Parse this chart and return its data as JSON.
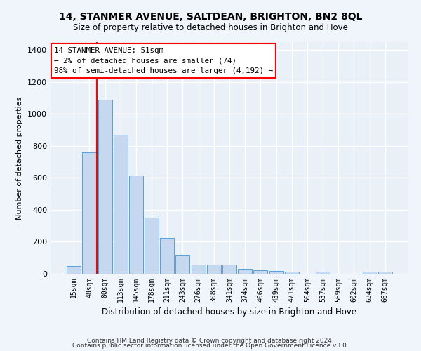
{
  "title": "14, STANMER AVENUE, SALTDEAN, BRIGHTON, BN2 8QL",
  "subtitle": "Size of property relative to detached houses in Brighton and Hove",
  "xlabel": "Distribution of detached houses by size in Brighton and Hove",
  "ylabel": "Number of detached properties",
  "categories": [
    "15sqm",
    "48sqm",
    "80sqm",
    "113sqm",
    "145sqm",
    "178sqm",
    "211sqm",
    "243sqm",
    "276sqm",
    "308sqm",
    "341sqm",
    "374sqm",
    "406sqm",
    "439sqm",
    "471sqm",
    "504sqm",
    "537sqm",
    "569sqm",
    "602sqm",
    "634sqm",
    "667sqm"
  ],
  "values": [
    50,
    760,
    1090,
    870,
    615,
    350,
    225,
    120,
    55,
    58,
    58,
    30,
    20,
    18,
    15,
    0,
    13,
    0,
    0,
    13,
    15
  ],
  "bar_color": "#c5d8f0",
  "bar_edgecolor": "#5a9fd4",
  "vline_x": 1.5,
  "annotation_text": "14 STANMER AVENUE: 51sqm\n← 2% of detached houses are smaller (74)\n98% of semi-detached houses are larger (4,192) →",
  "ylim": [
    0,
    1450
  ],
  "yticks": [
    0,
    200,
    400,
    600,
    800,
    1000,
    1200,
    1400
  ],
  "bg_color": "#eaf0f8",
  "grid_color": "#ffffff",
  "fig_bg_color": "#f0f5fc",
  "footer1": "Contains HM Land Registry data © Crown copyright and database right 2024.",
  "footer2": "Contains public sector information licensed under the Open Government Licence v3.0."
}
